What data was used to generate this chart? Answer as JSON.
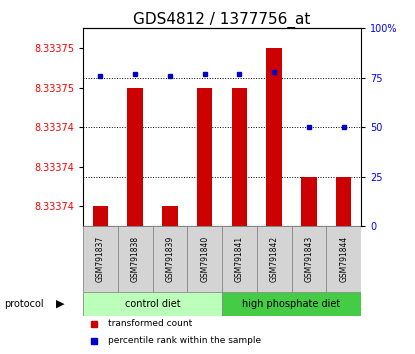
{
  "title": "GDS4812 / 1377756_at",
  "samples": [
    "GSM791837",
    "GSM791838",
    "GSM791839",
    "GSM791840",
    "GSM791841",
    "GSM791842",
    "GSM791843",
    "GSM791844"
  ],
  "red_values": [
    8.33374,
    8.333752,
    8.33374,
    8.333752,
    8.333752,
    8.333756,
    8.333743,
    8.333743
  ],
  "blue_values": [
    76,
    77,
    76,
    77,
    77,
    78,
    50,
    50
  ],
  "ylim_left": [
    8.333738,
    8.333758
  ],
  "ylim_right": [
    0,
    100
  ],
  "yticks_left_vals": [
    8.33374,
    8.333744,
    8.333748,
    8.333752,
    8.333756
  ],
  "ytick_labels_left": [
    "8.33374",
    "8.33374",
    "8.33374",
    "8.33375",
    "8.33375"
  ],
  "yticks_right": [
    0,
    25,
    50,
    75,
    100
  ],
  "bar_color": "#cc0000",
  "dot_color": "#0000cc",
  "protocol_label": "protocol",
  "legend_red": "transformed count",
  "legend_blue": "percentile rank within the sample",
  "title_fontsize": 11,
  "tick_fontsize": 7,
  "group_info": [
    {
      "start": 0,
      "end": 3,
      "label": "control diet",
      "color": "#bbffbb"
    },
    {
      "start": 4,
      "end": 7,
      "label": "high phosphate diet",
      "color": "#44cc44"
    }
  ]
}
